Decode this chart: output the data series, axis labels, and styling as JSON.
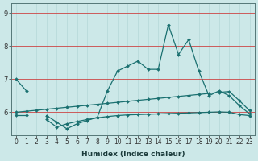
{
  "xlabel": "Humidex (Indice chaleur)",
  "x": [
    0,
    1,
    2,
    3,
    4,
    5,
    6,
    7,
    8,
    9,
    10,
    11,
    12,
    13,
    14,
    15,
    16,
    17,
    18,
    19,
    20,
    21,
    22,
    23
  ],
  "y_main": [
    7.0,
    6.65,
    null,
    5.9,
    5.7,
    5.5,
    5.65,
    5.75,
    5.85,
    6.65,
    7.25,
    7.4,
    7.55,
    7.3,
    7.3,
    8.65,
    7.75,
    8.2,
    7.25,
    6.5,
    6.65,
    6.5,
    6.2,
    5.95
  ],
  "y_upper": [
    6.0,
    6.03,
    6.06,
    6.09,
    6.12,
    6.15,
    6.18,
    6.21,
    6.24,
    6.27,
    6.3,
    6.33,
    6.36,
    6.39,
    6.42,
    6.45,
    6.48,
    6.51,
    6.54,
    6.57,
    6.6,
    6.63,
    6.35,
    6.05
  ],
  "y_lower": [
    5.92,
    5.92,
    null,
    5.78,
    5.55,
    5.65,
    5.72,
    5.78,
    5.83,
    5.87,
    5.9,
    5.92,
    5.93,
    5.94,
    5.95,
    5.96,
    5.97,
    5.98,
    5.99,
    6.0,
    6.01,
    6.0,
    5.93,
    5.9
  ],
  "bg_color": "#cce8e8",
  "line_color": "#1a7070",
  "grid_color": "#b8dada",
  "red_line_color": "#cc4444",
  "ylim": [
    5.3,
    9.3
  ],
  "yticks": [
    6,
    7,
    8,
    9
  ],
  "xticks": [
    0,
    1,
    2,
    3,
    4,
    5,
    6,
    7,
    8,
    9,
    10,
    11,
    12,
    13,
    14,
    15,
    16,
    17,
    18,
    19,
    20,
    21,
    22,
    23
  ],
  "tick_fontsize": 5.5,
  "xlabel_fontsize": 6.5
}
